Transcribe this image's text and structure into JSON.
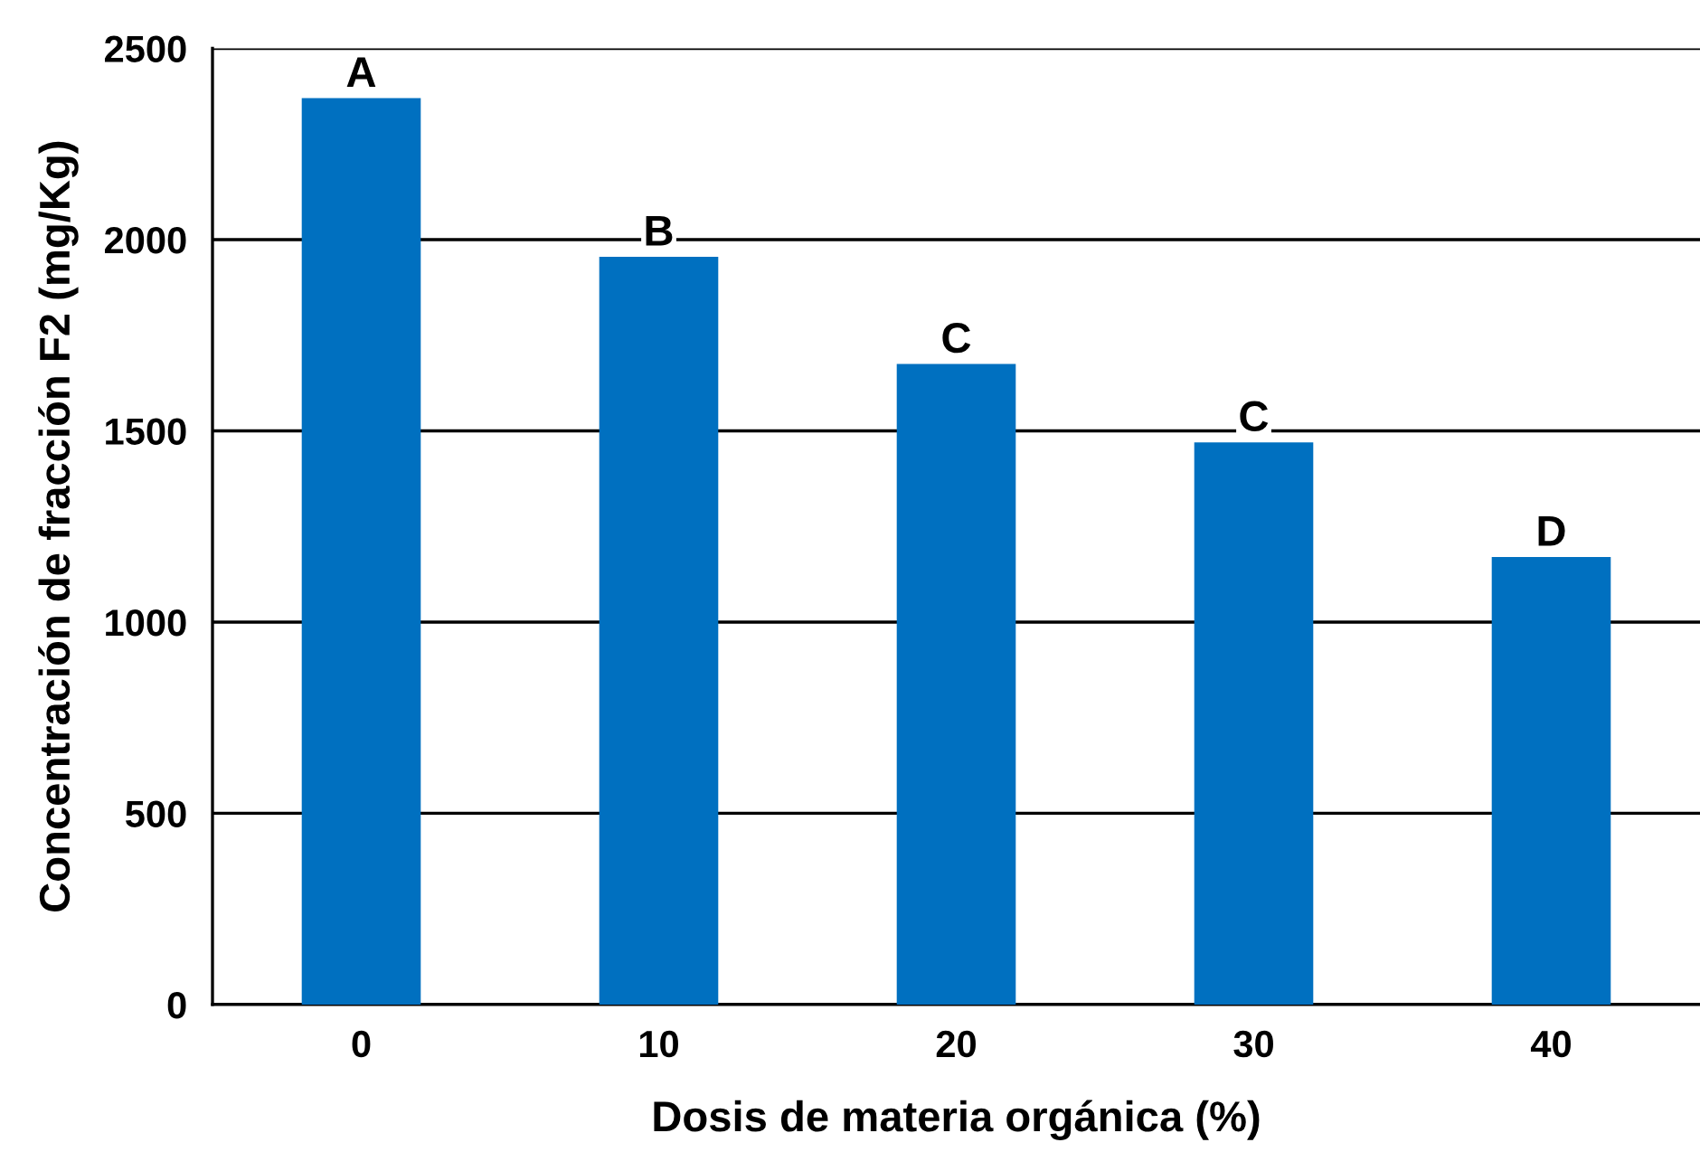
{
  "chart_data": {
    "type": "bar",
    "xlabel": "Dosis de materia orgánica (%)",
    "ylabel": "Concentración de fracción F2 (mg/Kg)",
    "categories": [
      "0",
      "10",
      "20",
      "30",
      "40"
    ],
    "values": [
      2370,
      1955,
      1675,
      1470,
      1170
    ],
    "color": "#0070c0",
    "ylim": [
      0,
      2500
    ],
    "yticks": [
      0,
      500,
      1000,
      1500,
      2000,
      2500
    ],
    "grid": "y",
    "annotations": [
      {
        "text": "A",
        "x": "0",
        "y": 2370
      },
      {
        "text": "B",
        "x": "10",
        "y": 1955
      },
      {
        "text": "C",
        "x": "20",
        "y": 1675
      },
      {
        "text": "C",
        "x": "30",
        "y": 1470
      },
      {
        "text": "D",
        "x": "40",
        "y": 1170
      }
    ]
  }
}
